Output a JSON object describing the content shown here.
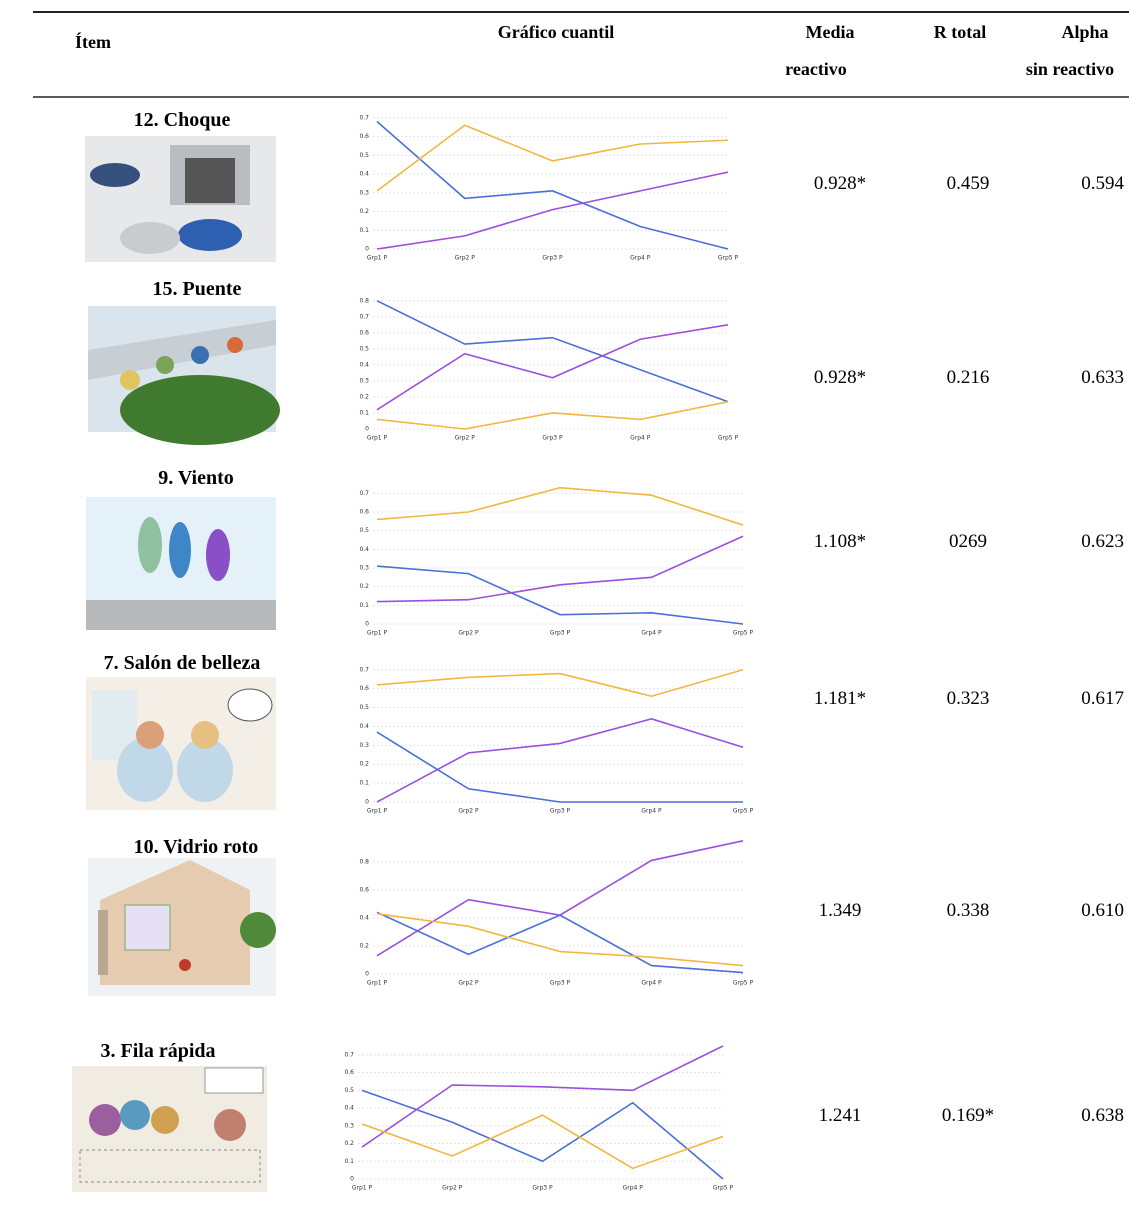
{
  "header": {
    "item": "Ítem",
    "chart": "Gráfico cuantil",
    "media": [
      "Media",
      "reactivo"
    ],
    "r_total": "R total",
    "alpha": [
      "Alpha",
      "sin reactivo"
    ]
  },
  "rows": [
    {
      "label": "12. Choque",
      "chart": {
        "type": "line",
        "categories": [
          "Grp1 P",
          "Grp2 P",
          "Grp3 P",
          "Grp4 P",
          "Grp5 P"
        ],
        "ylim": [
          0,
          0.72
        ],
        "yticks": [
          0,
          0.1,
          0.2,
          0.3,
          0.4,
          0.5,
          0.6,
          0.7
        ],
        "grid": true,
        "series": [
          {
            "color": "#4a6fd8",
            "values": [
              0.68,
              0.27,
              0.31,
              0.12,
              0
            ]
          },
          {
            "color": "#f0b840",
            "values": [
              0.31,
              0.66,
              0.47,
              0.56,
              0.58
            ]
          },
          {
            "color": "#9b4fe0",
            "values": [
              0,
              0.07,
              0.21,
              0.31,
              0.41
            ]
          }
        ]
      },
      "media": "0.928*",
      "r_total": "0.459",
      "alpha": "0.594"
    },
    {
      "label": "15. Puente",
      "chart": {
        "type": "line",
        "categories": [
          "Grp1 P",
          "Grp2 P",
          "Grp3 P",
          "Grp4 P",
          "Grp5 P"
        ],
        "ylim": [
          0,
          0.83
        ],
        "yticks": [
          0,
          0.1,
          0.2,
          0.3,
          0.4,
          0.5,
          0.6,
          0.7,
          0.8
        ],
        "grid": true,
        "series": [
          {
            "color": "#4a6fd8",
            "values": [
              0.8,
              0.53,
              0.57,
              0.37,
              0.17
            ]
          },
          {
            "color": "#f0b840",
            "values": [
              0.06,
              0,
              0.1,
              0.06,
              0.17
            ]
          },
          {
            "color": "#9b4fe0",
            "values": [
              0.12,
              0.47,
              0.32,
              0.56,
              0.65
            ]
          }
        ]
      },
      "media": "0.928*",
      "r_total": "0.216",
      "alpha": "0.633"
    },
    {
      "label": "9. Viento",
      "chart": {
        "type": "line",
        "categories": [
          "Grp1 P",
          "Grp2 P",
          "Grp3 P",
          "Grp4 P",
          "Grp5 P"
        ],
        "ylim": [
          0,
          0.75
        ],
        "yticks": [
          0,
          0.1,
          0.2,
          0.3,
          0.4,
          0.5,
          0.6,
          0.7
        ],
        "grid": true,
        "series": [
          {
            "color": "#f0b840",
            "values": [
              0.56,
              0.6,
              0.73,
              0.69,
              0.53
            ]
          },
          {
            "color": "#4a6fd8",
            "values": [
              0.31,
              0.27,
              0.05,
              0.06,
              0
            ]
          },
          {
            "color": "#9b4fe0",
            "values": [
              0.12,
              0.13,
              0.21,
              0.25,
              0.47
            ]
          }
        ]
      },
      "media": "1.108*",
      "r_total": "0269",
      "alpha": "0.623"
    },
    {
      "label": "7. Salón de belleza",
      "chart": {
        "type": "line",
        "categories": [
          "Grp1 P",
          "Grp2 P",
          "Grp3 P",
          "Grp4 P",
          "Grp5 P"
        ],
        "ylim": [
          0,
          0.72
        ],
        "yticks": [
          0,
          0.1,
          0.2,
          0.3,
          0.4,
          0.5,
          0.6,
          0.7
        ],
        "grid": true,
        "series": [
          {
            "color": "#f0b840",
            "values": [
              0.62,
              0.66,
              0.68,
              0.56,
              0.7
            ]
          },
          {
            "color": "#9b4fe0",
            "values": [
              0,
              0.26,
              0.31,
              0.44,
              0.29
            ]
          },
          {
            "color": "#4a6fd8",
            "values": [
              0.37,
              0.07,
              0,
              0,
              0
            ]
          }
        ]
      },
      "media": "1.181*",
      "r_total": "0.323",
      "alpha": "0.617"
    },
    {
      "label": "10. Vidrio  roto",
      "chart": {
        "type": "line",
        "categories": [
          "Grp1 P",
          "Grp2 P",
          "Grp3 P",
          "Grp4 P",
          "Grp5 P"
        ],
        "ylim": [
          0,
          0.97
        ],
        "yticks": [
          0,
          0.2,
          0.4,
          0.6,
          0.8
        ],
        "grid": true,
        "series": [
          {
            "color": "#9b4fe0",
            "values": [
              0.13,
              0.53,
              0.42,
              0.81,
              0.95
            ]
          },
          {
            "color": "#4a6fd8",
            "values": [
              0.44,
              0.14,
              0.42,
              0.06,
              0.01
            ]
          },
          {
            "color": "#f0b840",
            "values": [
              0.43,
              0.34,
              0.16,
              0.12,
              0.06
            ]
          }
        ]
      },
      "media": "1.349",
      "r_total": "0.338",
      "alpha": "0.610"
    },
    {
      "label": "3. Fila rápida",
      "chart": {
        "type": "line",
        "categories": [
          "Grp1 P",
          "Grp2 P",
          "Grp3 P",
          "Grp4 P",
          "Grp5 P"
        ],
        "ylim": [
          0,
          0.75
        ],
        "yticks": [
          0,
          0.1,
          0.2,
          0.3,
          0.4,
          0.5,
          0.6,
          0.7
        ],
        "grid": true,
        "series": [
          {
            "color": "#4a6fd8",
            "values": [
              0.5,
              0.32,
              0.1,
              0.43,
              0
            ]
          },
          {
            "color": "#9b4fe0",
            "values": [
              0.18,
              0.53,
              0.52,
              0.5,
              0.75
            ]
          },
          {
            "color": "#f0b840",
            "values": [
              0.31,
              0.13,
              0.36,
              0.06,
              0.24
            ]
          }
        ]
      },
      "media": "1.241",
      "r_total": "0.169*",
      "alpha": "0.638"
    }
  ]
}
